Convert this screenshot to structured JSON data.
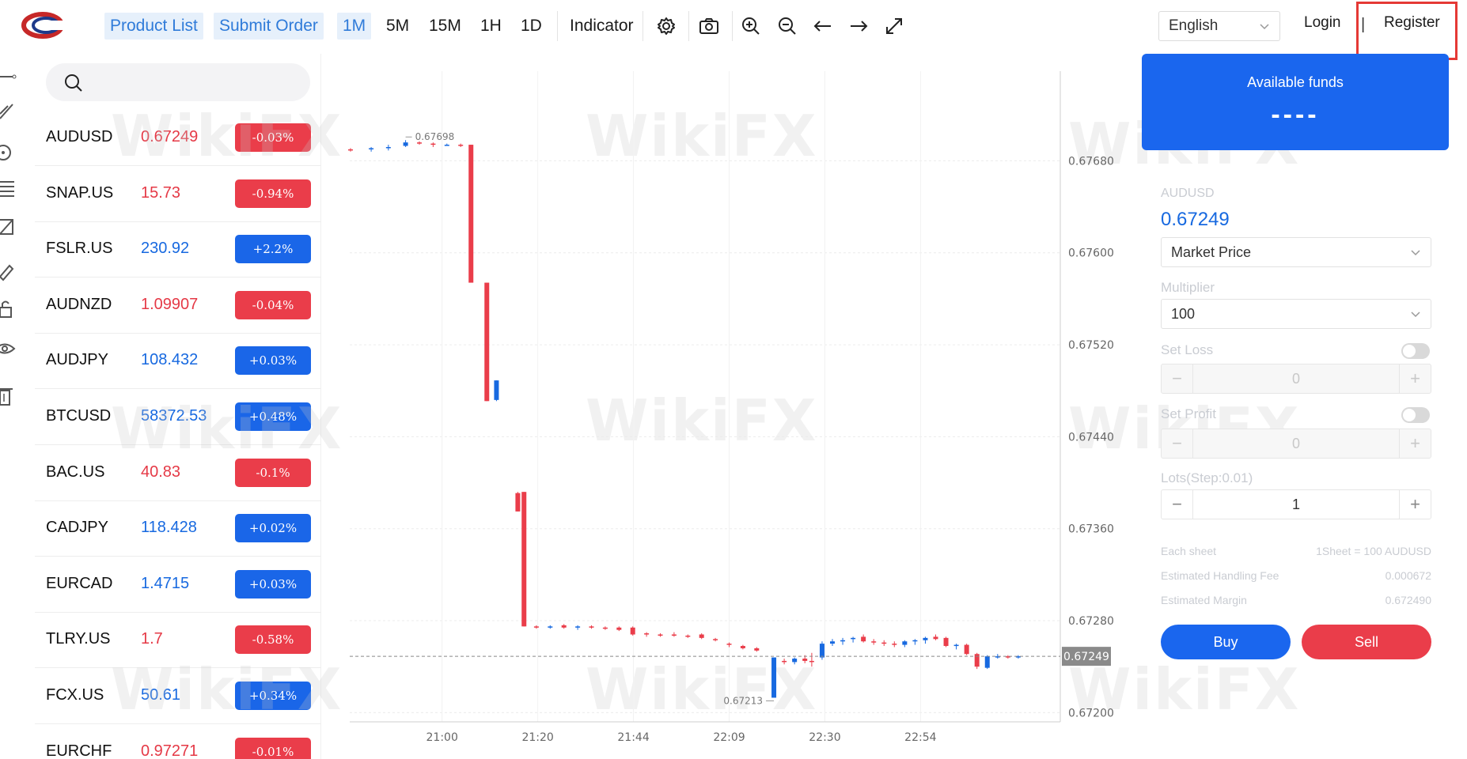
{
  "topbar": {
    "product_list": "Product List",
    "submit_order": "Submit Order",
    "timeframes": [
      "1M",
      "5M",
      "15M",
      "1H",
      "1D"
    ],
    "indicator": "Indicator",
    "language": "English",
    "login": "Login",
    "separator": "|",
    "register": "Register"
  },
  "products": [
    {
      "symbol": "AUDUSD",
      "price": "0.67249",
      "change": "-0.03%",
      "dir": "down"
    },
    {
      "symbol": "SNAP.US",
      "price": "15.73",
      "change": "-0.94%",
      "dir": "down"
    },
    {
      "symbol": "FSLR.US",
      "price": "230.92",
      "change": "+2.2%",
      "dir": "up"
    },
    {
      "symbol": "AUDNZD",
      "price": "1.09907",
      "change": "-0.04%",
      "dir": "down"
    },
    {
      "symbol": "AUDJPY",
      "price": "108.432",
      "change": "+0.03%",
      "dir": "up"
    },
    {
      "symbol": "BTCUSD",
      "price": "58372.53",
      "change": "+0.48%",
      "dir": "up"
    },
    {
      "symbol": "BAC.US",
      "price": "40.83",
      "change": "-0.1%",
      "dir": "down"
    },
    {
      "symbol": "CADJPY",
      "price": "118.428",
      "change": "+0.02%",
      "dir": "up"
    },
    {
      "symbol": "EURCAD",
      "price": "1.4715",
      "change": "+0.03%",
      "dir": "up"
    },
    {
      "symbol": "TLRY.US",
      "price": "1.7",
      "change": "-0.58%",
      "dir": "down"
    },
    {
      "symbol": "FCX.US",
      "price": "50.61",
      "change": "+0.34%",
      "dir": "up"
    },
    {
      "symbol": "EURCHF",
      "price": "0.97271",
      "change": "-0.01%",
      "dir": "down"
    }
  ],
  "chart_data": {
    "type": "candlestick",
    "y_ticks": [
      "0.67680",
      "0.67600",
      "0.67520",
      "0.67440",
      "0.67360",
      "0.67280",
      "0.67200"
    ],
    "x_ticks": [
      "21:00",
      "21:20",
      "21:44",
      "22:09",
      "22:30",
      "22:54"
    ],
    "ylim": [
      0.67192,
      0.67758
    ],
    "current_price": "0.67249",
    "high_label": "0.67698",
    "low_label": "0.67213",
    "watermark": "WikiFX",
    "candles": [
      {
        "t": 0.0,
        "o": 0.6769,
        "h": 0.67691,
        "l": 0.67688,
        "c": 0.67689
      },
      {
        "t": 0.03,
        "o": 0.6769,
        "h": 0.67692,
        "l": 0.67688,
        "c": 0.67691
      },
      {
        "t": 0.055,
        "o": 0.67691,
        "h": 0.67694,
        "l": 0.67689,
        "c": 0.67692
      },
      {
        "t": 0.08,
        "o": 0.67693,
        "h": 0.67698,
        "l": 0.67692,
        "c": 0.67696
      },
      {
        "t": 0.1,
        "o": 0.67696,
        "h": 0.67697,
        "l": 0.67694,
        "c": 0.67695
      },
      {
        "t": 0.12,
        "o": 0.67695,
        "h": 0.67696,
        "l": 0.67692,
        "c": 0.67694
      },
      {
        "t": 0.14,
        "o": 0.67694,
        "h": 0.67695,
        "l": 0.67693,
        "c": 0.67694
      },
      {
        "t": 0.16,
        "o": 0.67694,
        "h": 0.67695,
        "l": 0.67692,
        "c": 0.67693
      },
      {
        "t": 0.175,
        "o": 0.67694,
        "h": 0.67694,
        "l": 0.67574,
        "c": 0.67574
      },
      {
        "t": 0.198,
        "o": 0.67574,
        "h": 0.67574,
        "l": 0.67471,
        "c": 0.67471
      },
      {
        "t": 0.212,
        "o": 0.67472,
        "h": 0.67489,
        "l": 0.67471,
        "c": 0.67489
      },
      {
        "t": 0.243,
        "o": 0.67391,
        "h": 0.67392,
        "l": 0.67375,
        "c": 0.67375
      },
      {
        "t": 0.252,
        "o": 0.67392,
        "h": 0.67392,
        "l": 0.67275,
        "c": 0.67275
      },
      {
        "t": 0.27,
        "o": 0.67275,
        "h": 0.67276,
        "l": 0.67273,
        "c": 0.67274
      },
      {
        "t": 0.29,
        "o": 0.67275,
        "h": 0.67276,
        "l": 0.67273,
        "c": 0.67275
      },
      {
        "t": 0.31,
        "o": 0.67276,
        "h": 0.67277,
        "l": 0.67273,
        "c": 0.67274
      },
      {
        "t": 0.33,
        "o": 0.67274,
        "h": 0.67276,
        "l": 0.67272,
        "c": 0.67275
      },
      {
        "t": 0.35,
        "o": 0.67275,
        "h": 0.67276,
        "l": 0.67273,
        "c": 0.67274
      },
      {
        "t": 0.37,
        "o": 0.67274,
        "h": 0.67275,
        "l": 0.67272,
        "c": 0.67273
      },
      {
        "t": 0.39,
        "o": 0.67274,
        "h": 0.67275,
        "l": 0.67271,
        "c": 0.67272
      },
      {
        "t": 0.41,
        "o": 0.67274,
        "h": 0.67275,
        "l": 0.67267,
        "c": 0.67268
      },
      {
        "t": 0.43,
        "o": 0.67269,
        "h": 0.6727,
        "l": 0.67266,
        "c": 0.67268
      },
      {
        "t": 0.45,
        "o": 0.67268,
        "h": 0.67269,
        "l": 0.67266,
        "c": 0.67267
      },
      {
        "t": 0.47,
        "o": 0.67268,
        "h": 0.6727,
        "l": 0.67266,
        "c": 0.67267
      },
      {
        "t": 0.49,
        "o": 0.67267,
        "h": 0.67268,
        "l": 0.67265,
        "c": 0.67266
      },
      {
        "t": 0.51,
        "o": 0.67268,
        "h": 0.67269,
        "l": 0.67264,
        "c": 0.67265
      },
      {
        "t": 0.53,
        "o": 0.67264,
        "h": 0.67265,
        "l": 0.67262,
        "c": 0.67263
      },
      {
        "t": 0.55,
        "o": 0.6726,
        "h": 0.67261,
        "l": 0.67257,
        "c": 0.67259
      },
      {
        "t": 0.57,
        "o": 0.67258,
        "h": 0.67259,
        "l": 0.67255,
        "c": 0.67256
      },
      {
        "t": 0.59,
        "o": 0.67256,
        "h": 0.67257,
        "l": 0.67253,
        "c": 0.67254
      },
      {
        "t": 0.615,
        "o": 0.67213,
        "h": 0.67248,
        "l": 0.67213,
        "c": 0.67248
      },
      {
        "t": 0.63,
        "o": 0.67245,
        "h": 0.67247,
        "l": 0.67242,
        "c": 0.67244
      },
      {
        "t": 0.645,
        "o": 0.67244,
        "h": 0.67248,
        "l": 0.67242,
        "c": 0.67247
      },
      {
        "t": 0.66,
        "o": 0.67247,
        "h": 0.6725,
        "l": 0.67243,
        "c": 0.67245
      },
      {
        "t": 0.67,
        "o": 0.67245,
        "h": 0.67252,
        "l": 0.6724,
        "c": 0.67244
      },
      {
        "t": 0.685,
        "o": 0.67248,
        "h": 0.67262,
        "l": 0.67246,
        "c": 0.6726
      },
      {
        "t": 0.7,
        "o": 0.6726,
        "h": 0.67264,
        "l": 0.67258,
        "c": 0.67262
      },
      {
        "t": 0.715,
        "o": 0.67262,
        "h": 0.67265,
        "l": 0.67259,
        "c": 0.67263
      },
      {
        "t": 0.73,
        "o": 0.67264,
        "h": 0.67266,
        "l": 0.67261,
        "c": 0.67265
      },
      {
        "t": 0.745,
        "o": 0.67266,
        "h": 0.67268,
        "l": 0.67261,
        "c": 0.67262
      },
      {
        "t": 0.76,
        "o": 0.67262,
        "h": 0.67264,
        "l": 0.67259,
        "c": 0.67261
      },
      {
        "t": 0.775,
        "o": 0.67261,
        "h": 0.67263,
        "l": 0.67258,
        "c": 0.6726
      },
      {
        "t": 0.79,
        "o": 0.6726,
        "h": 0.67262,
        "l": 0.67257,
        "c": 0.67259
      },
      {
        "t": 0.805,
        "o": 0.67259,
        "h": 0.67263,
        "l": 0.67257,
        "c": 0.67262
      },
      {
        "t": 0.82,
        "o": 0.67262,
        "h": 0.67264,
        "l": 0.67259,
        "c": 0.67263
      },
      {
        "t": 0.835,
        "o": 0.67263,
        "h": 0.67266,
        "l": 0.6726,
        "c": 0.67265
      },
      {
        "t": 0.85,
        "o": 0.67266,
        "h": 0.67268,
        "l": 0.67263,
        "c": 0.67264
      },
      {
        "t": 0.865,
        "o": 0.67265,
        "h": 0.67266,
        "l": 0.67257,
        "c": 0.67258
      },
      {
        "t": 0.88,
        "o": 0.67258,
        "h": 0.6726,
        "l": 0.67255,
        "c": 0.67259
      },
      {
        "t": 0.895,
        "o": 0.67259,
        "h": 0.6726,
        "l": 0.6725,
        "c": 0.67251
      },
      {
        "t": 0.91,
        "o": 0.67251,
        "h": 0.67252,
        "l": 0.67238,
        "c": 0.6724
      },
      {
        "t": 0.925,
        "o": 0.67239,
        "h": 0.6725,
        "l": 0.67238,
        "c": 0.67249
      },
      {
        "t": 0.94,
        "o": 0.67249,
        "h": 0.67251,
        "l": 0.67247,
        "c": 0.67249
      },
      {
        "t": 0.955,
        "o": 0.67249,
        "h": 0.6725,
        "l": 0.67247,
        "c": 0.67248
      },
      {
        "t": 0.97,
        "o": 0.67248,
        "h": 0.6725,
        "l": 0.67247,
        "c": 0.67249
      }
    ]
  },
  "order_panel": {
    "available_funds_label": "Available funds",
    "available_funds_value": "----",
    "symbol": "AUDUSD",
    "price": "0.67249",
    "order_type": "Market Price",
    "multiplier_label": "Multiplier",
    "multiplier_value": "100",
    "set_loss_label": "Set Loss",
    "set_loss_value": "0",
    "set_profit_label": "Set Profit",
    "set_profit_value": "0",
    "lots_label": "Lots(Step:0.01)",
    "lots_value": "1",
    "each_sheet_label": "Each sheet",
    "each_sheet_value": "1Sheet = 100 AUDUSD",
    "fee_label": "Estimated Handling Fee",
    "fee_value": "0.000672",
    "margin_label": "Estimated Margin",
    "margin_value": "0.672490",
    "buy_label": "Buy",
    "sell_label": "Sell"
  },
  "colors": {
    "accent_blue": "#1a66ee",
    "down_red": "#ea3d4a",
    "up_blue": "#1769e0"
  }
}
